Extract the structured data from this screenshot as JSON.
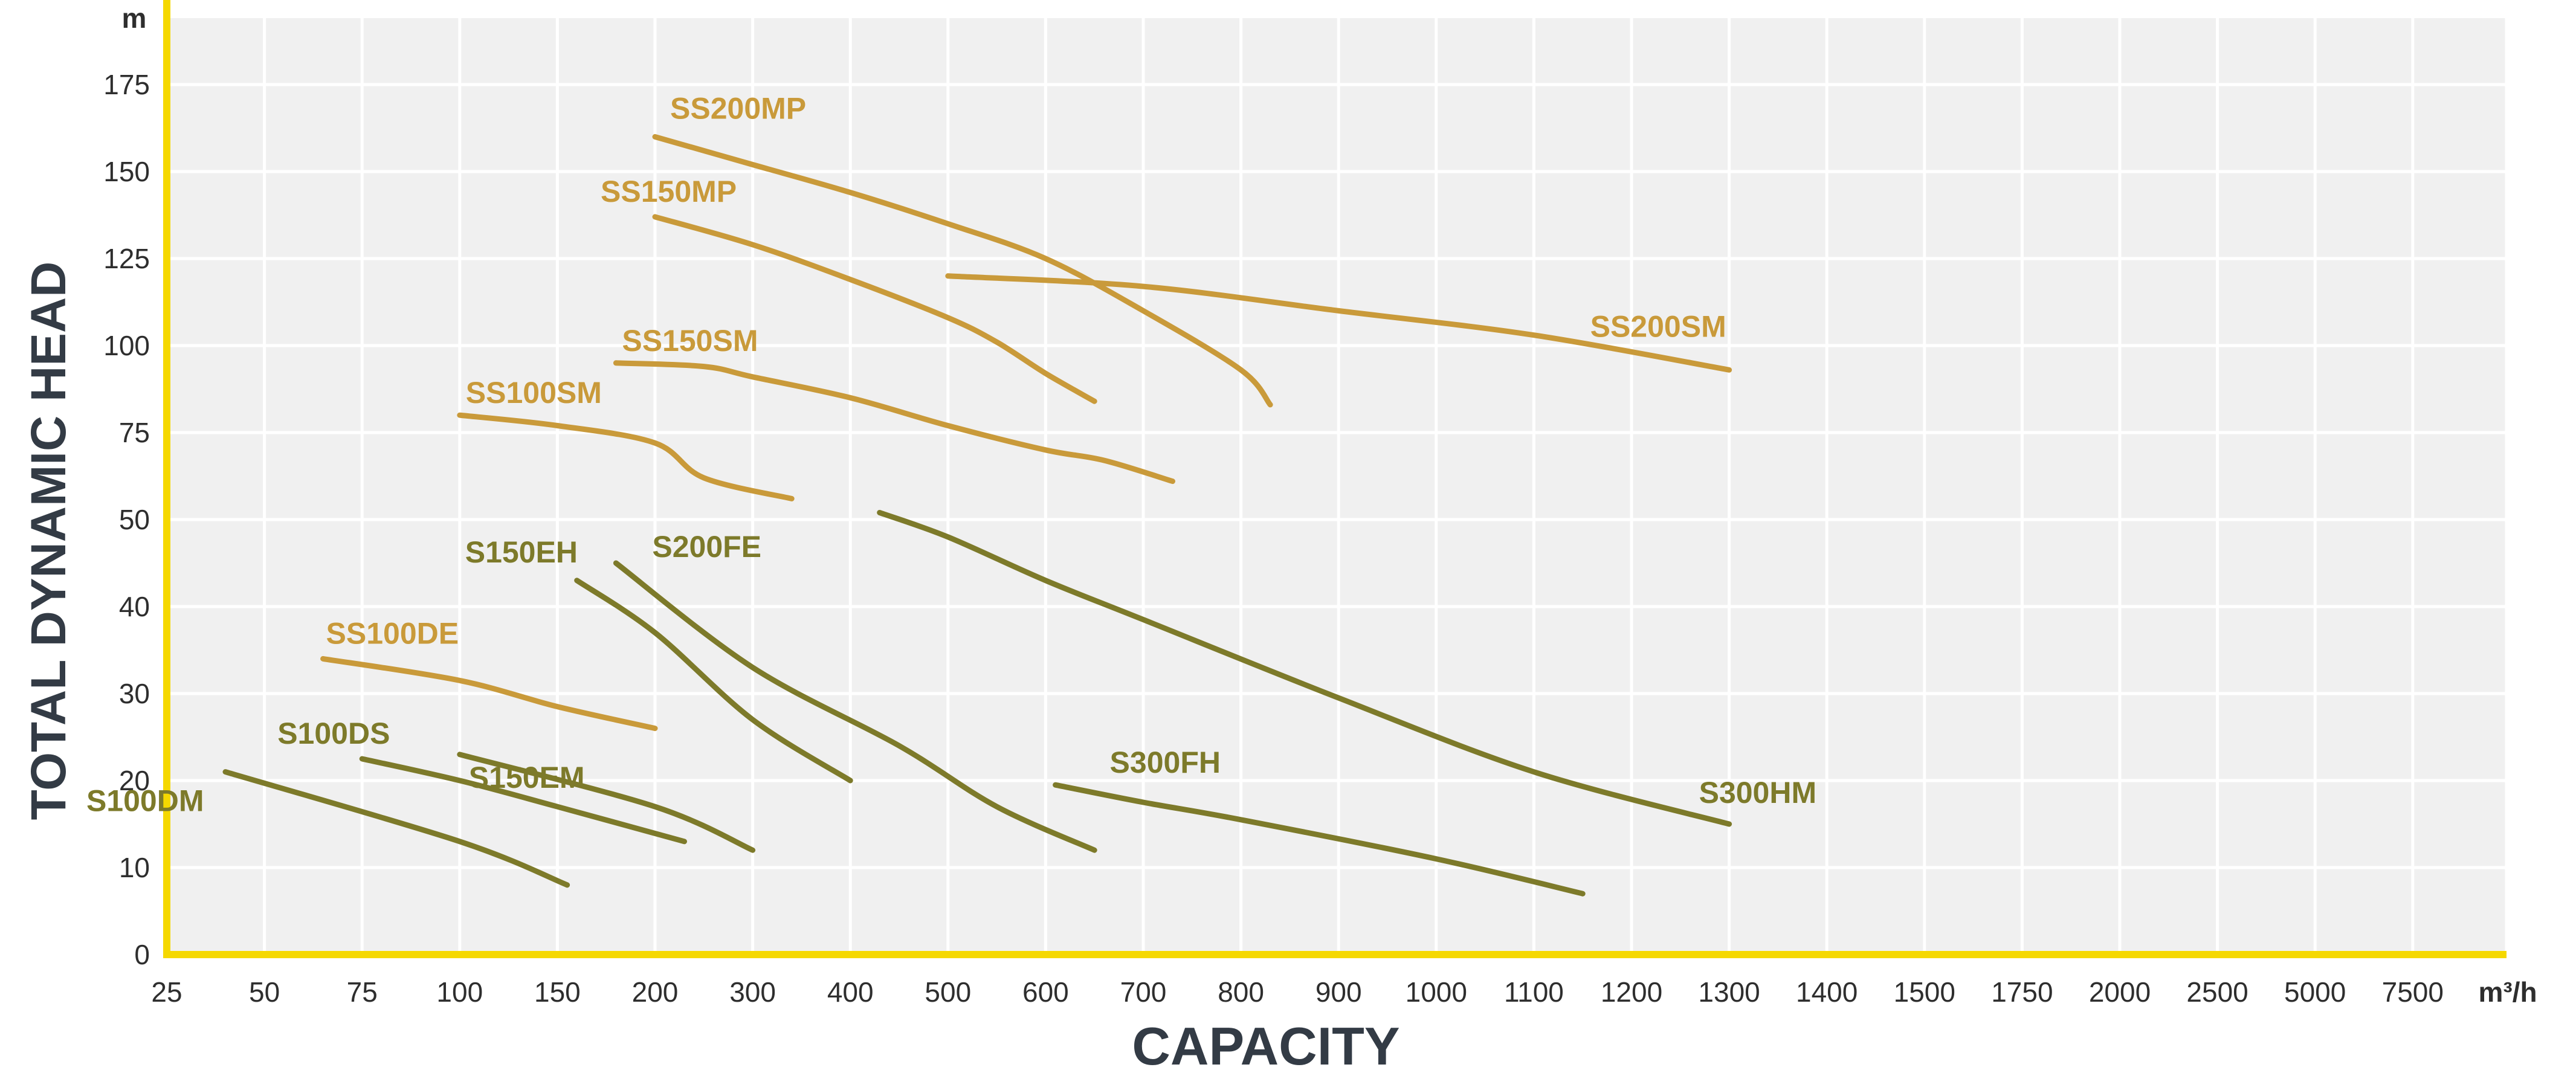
{
  "chart_data": {
    "type": "line",
    "xlabel": "CAPACITY",
    "ylabel": "TOTAL DYNAMIC HEAD",
    "x_unit": "m³/h",
    "y_unit": "m",
    "x_scale": "categorical (non-uniform tick spacing)",
    "x_ticks": [
      "25",
      "50",
      "75",
      "100",
      "150",
      "200",
      "300",
      "400",
      "500",
      "600",
      "700",
      "800",
      "900",
      "1000",
      "1100",
      "1200",
      "1300",
      "1400",
      "1500",
      "1750",
      "2000",
      "2500",
      "5000",
      "7500"
    ],
    "y_ticks": [
      "0",
      "10",
      "20",
      "30",
      "40",
      "50",
      "75",
      "100",
      "125",
      "150",
      "175"
    ],
    "grid": true,
    "colors": {
      "gold_series": "#c99a3a",
      "olive_series": "#7d7a2a",
      "background": "#f0f0f0",
      "axis": "#f5d800"
    },
    "series": [
      {
        "name": "SS200MP",
        "color": "gold",
        "points": [
          [
            200,
            160
          ],
          [
            300,
            152
          ],
          [
            400,
            144
          ],
          [
            500,
            135
          ],
          [
            600,
            125
          ],
          [
            700,
            110
          ],
          [
            800,
            93
          ],
          [
            830,
            83
          ]
        ]
      },
      {
        "name": "SS150MP",
        "color": "gold",
        "points": [
          [
            200,
            137
          ],
          [
            300,
            129
          ],
          [
            400,
            119
          ],
          [
            500,
            108
          ],
          [
            550,
            101
          ],
          [
            600,
            92
          ],
          [
            650,
            84
          ]
        ]
      },
      {
        "name": "SS200SM",
        "color": "gold",
        "points": [
          [
            500,
            120
          ],
          [
            700,
            117
          ],
          [
            900,
            110
          ],
          [
            1100,
            103
          ],
          [
            1300,
            93
          ]
        ]
      },
      {
        "name": "SS150SM",
        "color": "gold",
        "points": [
          [
            180,
            95
          ],
          [
            250,
            94
          ],
          [
            300,
            91
          ],
          [
            400,
            85
          ],
          [
            500,
            77
          ],
          [
            600,
            70
          ],
          [
            660,
            67
          ],
          [
            730,
            61
          ]
        ]
      },
      {
        "name": "SS100SM",
        "color": "gold",
        "points": [
          [
            100,
            80
          ],
          [
            150,
            77
          ],
          [
            200,
            72
          ],
          [
            250,
            62
          ],
          [
            340,
            56
          ]
        ]
      },
      {
        "name": "SS100DE",
        "color": "gold",
        "points": [
          [
            65,
            34
          ],
          [
            100,
            31.5
          ],
          [
            150,
            28.5
          ],
          [
            200,
            26
          ]
        ]
      },
      {
        "name": "S150EH",
        "color": "olive",
        "points": [
          [
            160,
            43
          ],
          [
            200,
            37
          ],
          [
            300,
            27
          ],
          [
            400,
            20
          ]
        ]
      },
      {
        "name": "S200FE",
        "color": "olive",
        "points": [
          [
            180,
            45
          ],
          [
            300,
            33
          ],
          [
            450,
            24
          ],
          [
            550,
            17
          ],
          [
            650,
            12
          ]
        ]
      },
      {
        "name": "S300HM",
        "color": "olive",
        "points": [
          [
            430,
            52
          ],
          [
            500,
            48
          ],
          [
            600,
            43
          ],
          [
            700,
            38.5
          ],
          [
            900,
            29.5
          ],
          [
            1100,
            21
          ],
          [
            1300,
            15
          ]
        ]
      },
      {
        "name": "S300FH",
        "color": "olive",
        "points": [
          [
            610,
            19.5
          ],
          [
            700,
            17.5
          ],
          [
            800,
            15.5
          ],
          [
            1000,
            11
          ],
          [
            1150,
            7
          ]
        ]
      },
      {
        "name": "S100DS",
        "color": "olive",
        "points": [
          [
            75,
            22.5
          ],
          [
            100,
            20
          ],
          [
            150,
            17
          ],
          [
            230,
            13
          ]
        ]
      },
      {
        "name": "S150EM",
        "color": "olive",
        "points": [
          [
            100,
            23
          ],
          [
            200,
            17
          ],
          [
            300,
            12
          ]
        ]
      },
      {
        "name": "S100DM",
        "color": "olive",
        "points": [
          [
            40,
            21
          ],
          [
            100,
            13
          ],
          [
            155,
            8
          ]
        ]
      }
    ]
  }
}
